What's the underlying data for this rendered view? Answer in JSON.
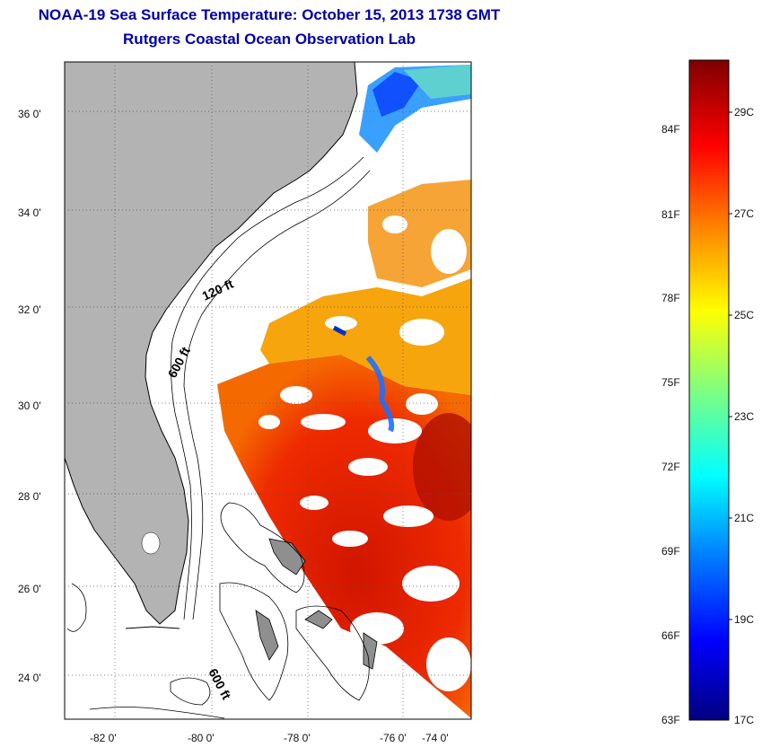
{
  "title": "NOAA-19 Sea Surface Temperature:  October 15, 2013 1738 GMT",
  "subtitle": "Rutgers Coastal Ocean Observation Lab",
  "map": {
    "lat_ticks": [
      "36 0'",
      "34 0'",
      "32 0'",
      "30 0'",
      "28 0'",
      "26 0'",
      "24 0'"
    ],
    "lon_ticks": [
      "-82 0'",
      "-80 0'",
      "-78 0'",
      "-76 0'",
      "-74 0'"
    ],
    "contour_labels": [
      "120 ft",
      "600 ft",
      "600 ft"
    ],
    "land_color": "#b3b3b3",
    "cloud_color": "#ffffff"
  },
  "colorbar": {
    "fahrenheit_labels": [
      "84F",
      "81F",
      "78F",
      "75F",
      "72F",
      "69F",
      "66F",
      "63F"
    ],
    "celsius_labels": [
      "29C",
      "27C",
      "25C",
      "23C",
      "21C",
      "19C",
      "17C"
    ],
    "range_c": [
      17,
      30
    ],
    "colors": [
      "#00007f",
      "#0000ff",
      "#007fff",
      "#00ffff",
      "#7fff7f",
      "#ffff00",
      "#ff7f00",
      "#ff0000",
      "#7f0000"
    ]
  }
}
